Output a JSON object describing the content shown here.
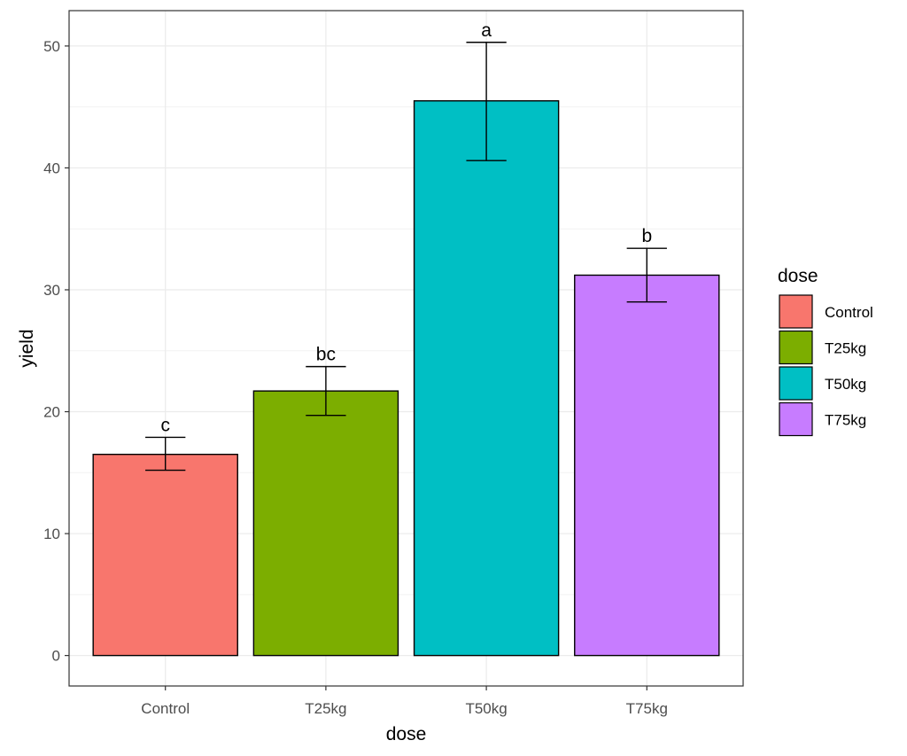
{
  "chart_data": {
    "type": "bar",
    "title": "",
    "xlabel": "dose",
    "ylabel": "yield",
    "categories": [
      "Control",
      "T25kg",
      "T50kg",
      "T75kg"
    ],
    "values": [
      16.5,
      21.7,
      45.5,
      31.2
    ],
    "error_low": [
      15.2,
      19.7,
      40.6,
      29.0
    ],
    "error_high": [
      17.9,
      23.7,
      50.3,
      33.4
    ],
    "group_labels": [
      "c",
      "bc",
      "a",
      "b"
    ],
    "colors": [
      "#F8766D",
      "#7CAE00",
      "#00BFC4",
      "#C77CFF"
    ],
    "ylim": [
      -2.5,
      52.9
    ],
    "yticks": [
      0,
      10,
      20,
      30,
      40,
      50
    ],
    "grid": true,
    "legend": {
      "title": "dose",
      "position": "right",
      "items": [
        "Control",
        "T25kg",
        "T50kg",
        "T75kg"
      ]
    }
  }
}
